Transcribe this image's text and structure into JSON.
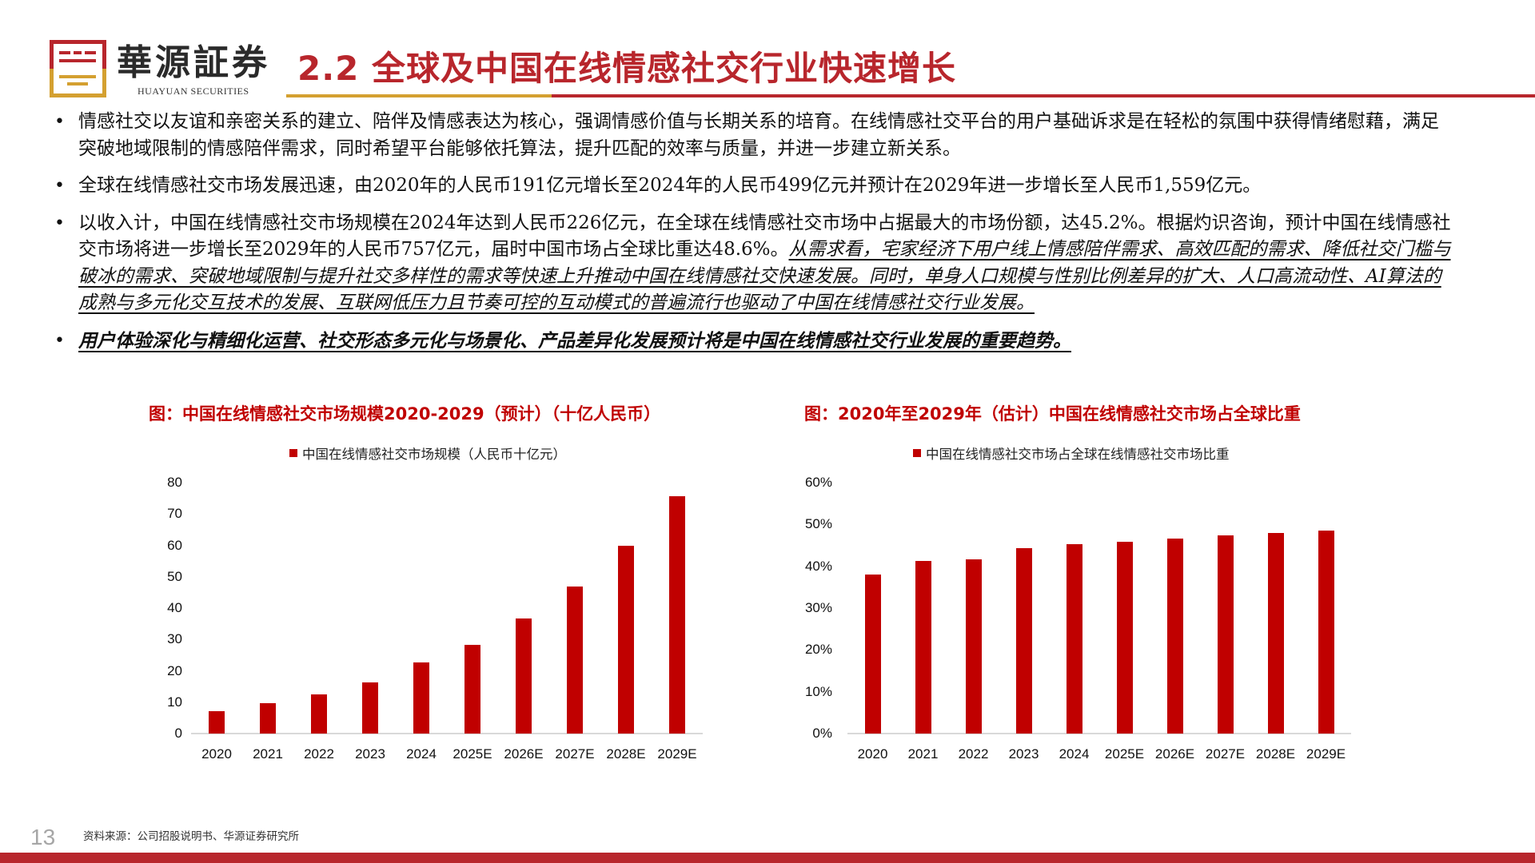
{
  "header": {
    "logo_cn": "華源証券",
    "logo_en": "HUAYUAN SECURITIES",
    "title": "2.2 全球及中国在线情感社交行业快速增长"
  },
  "bullets": [
    {
      "plain": "情感社交以友谊和亲密关系的建立、陪伴及情感表达为核心，强调情感价值与长期关系的培育。在线情感社交平台的用户基础诉求是在轻松的氛围中获得情绪慰藉，满足突破地域限制的情感陪伴需求，同时希望平台能够依托算法，提升匹配的效率与质量，并进一步建立新关系。",
      "emph": ""
    },
    {
      "plain": "全球在线情感社交市场发展迅速，由2020年的人民币191亿元增长至2024年的人民币499亿元并预计在2029年进一步增长至人民币1,559亿元。",
      "emph": ""
    },
    {
      "plain": "以收入计，中国在线情感社交市场规模在2024年达到人民币226亿元，在全球在线情感社交市场中占据最大的市场份额，达45.2%。根据灼识咨询，预计中国在线情感社交市场将进一步增长至2029年的人民币757亿元，届时中国市场占全球比重达48.6%。",
      "emph": "从需求看，宅家经济下用户线上情感陪伴需求、高效匹配的需求、降低社交门槛与破冰的需求、突破地域限制与提升社交多样性的需求等快速上升推动中国在线情感社交快速发展。同时，单身人口规模与性别比例差异的扩大、人口高流动性、AI算法的成熟与多元化交互技术的发展、互联网低压力且节奏可控的互动模式的普遍流行也驱动了中国在线情感社交行业发展。"
    },
    {
      "plain": "",
      "emph_bold": "用户体验深化与精细化运营、社交形态多元化与场景化、产品差异化发展预计将是中国在线情感社交行业发展的重要趋势。"
    }
  ],
  "bullet_glyph": "•",
  "chart_data": [
    {
      "type": "bar",
      "title": "图：中国在线情感社交市场规模2020-2029（预计）（十亿人民币）",
      "legend": [
        "中国在线情感社交市场规模（人民币十亿元）"
      ],
      "legend_position": "top",
      "categories": [
        "2020",
        "2021",
        "2022",
        "2023",
        "2024",
        "2025E",
        "2026E",
        "2027E",
        "2028E",
        "2029E"
      ],
      "series": [
        {
          "name": "中国在线情感社交市场规模（人民币十亿元）",
          "values": [
            7.2,
            9.7,
            12.4,
            16.2,
            22.6,
            28.4,
            36.6,
            46.9,
            59.8,
            75.7
          ],
          "color": "#c00000"
        }
      ],
      "yticks": [
        "0",
        "10",
        "20",
        "30",
        "40",
        "50",
        "60",
        "70",
        "80"
      ],
      "ylim": [
        0,
        80
      ],
      "xlabel": "",
      "ylabel": "",
      "grid": false
    },
    {
      "type": "bar",
      "title": "图：2020年至2029年（估计）中国在线情感社交市场占全球比重",
      "legend": [
        "中国在线情感社交市场占全球在线情感社交市场比重"
      ],
      "legend_position": "top",
      "categories": [
        "2020",
        "2021",
        "2022",
        "2023",
        "2024",
        "2025E",
        "2026E",
        "2027E",
        "2028E",
        "2029E"
      ],
      "series": [
        {
          "name": "中国在线情感社交市场占全球在线情感社交市场比重",
          "values": [
            38.0,
            41.2,
            41.6,
            44.4,
            45.2,
            45.9,
            46.7,
            47.4,
            48.0,
            48.6
          ],
          "color": "#c00000"
        }
      ],
      "yticks": [
        "0%",
        "10%",
        "20%",
        "30%",
        "40%",
        "50%",
        "60%"
      ],
      "ylim": [
        0,
        60
      ],
      "xlabel": "",
      "ylabel": "",
      "grid": false
    }
  ],
  "footer": {
    "page_number": "13",
    "source": "资料来源：公司招股说明书、华源证券研究所"
  },
  "colors": {
    "brand_red": "#b8262c",
    "brand_gold": "#d4a030",
    "bar_red": "#c00000",
    "page_number_gray": "#a6a6a6"
  }
}
